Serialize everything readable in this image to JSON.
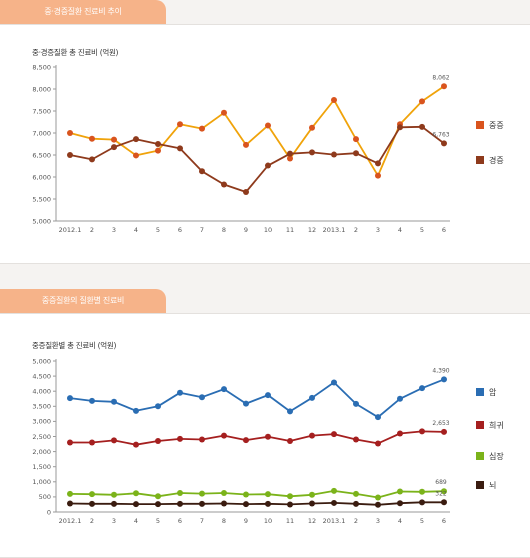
{
  "panels": [
    {
      "tab_label": "중·경증질환 진료비 추이",
      "chart_data": {
        "type": "line",
        "title": "중·경증질환 총 진료비 (억원)",
        "categories": [
          "2012.1",
          "2",
          "3",
          "4",
          "5",
          "6",
          "7",
          "8",
          "9",
          "10",
          "11",
          "12",
          "2013.1",
          "2",
          "3",
          "4",
          "5",
          "6"
        ],
        "ylim": [
          5000,
          8500
        ],
        "yticks": [
          5000,
          5500,
          6000,
          6500,
          7000,
          7500,
          8000,
          8500
        ],
        "ytick_labels": [
          "5,000",
          "5,500",
          "6,000",
          "6,500",
          "7,000",
          "7,500",
          "8,000",
          "8,500"
        ],
        "grid": false,
        "legend_position": "right",
        "series": [
          {
            "name": "중증",
            "color": "#f0a30a",
            "marker_color": "#d9541e",
            "values": [
              7000,
              6870,
              6850,
              6490,
              6600,
              7200,
              7100,
              7460,
              6730,
              7170,
              6420,
              7120,
              7750,
              6860,
              6030,
              7200,
              7720,
              8062
            ],
            "end_label": "8,062"
          },
          {
            "name": "경증",
            "color": "#8e3a1c",
            "marker_color": "#8e3a1c",
            "values": [
              6500,
              6400,
              6680,
              6860,
              6750,
              6650,
              6130,
              5830,
              5660,
              6260,
              6530,
              6560,
              6510,
              6540,
              6310,
              7130,
              7140,
              6763
            ],
            "end_label": "6,763"
          }
        ]
      }
    },
    {
      "tab_label": "중증질환의 질환별 진료비",
      "chart_data": {
        "type": "line",
        "title": "중증질환별 총 진료비 (억원)",
        "categories": [
          "2012.1",
          "2",
          "3",
          "4",
          "5",
          "6",
          "7",
          "8",
          "9",
          "10",
          "11",
          "12",
          "2013.1",
          "2",
          "3",
          "4",
          "5",
          "6"
        ],
        "ylim": [
          0,
          5000
        ],
        "yticks": [
          0,
          500,
          1000,
          1500,
          2000,
          2500,
          3000,
          3500,
          4000,
          4500,
          5000
        ],
        "ytick_labels": [
          "0",
          "500",
          "1,000",
          "1,500",
          "2,000",
          "2,500",
          "3,000",
          "3,500",
          "4,000",
          "4,500",
          "5,000"
        ],
        "grid": false,
        "legend_position": "right",
        "series": [
          {
            "name": "암",
            "color": "#2a6db3",
            "marker_color": "#2a6db3",
            "values": [
              3770,
              3680,
              3650,
              3350,
              3500,
              3950,
              3800,
              4070,
              3590,
              3870,
              3330,
              3780,
              4290,
              3580,
              3140,
              3750,
              4100,
              4390
            ],
            "end_label": "4,390"
          },
          {
            "name": "희귀",
            "color": "#a51f1f",
            "marker_color": "#a51f1f",
            "values": [
              2300,
              2300,
              2370,
              2230,
              2350,
              2420,
              2400,
              2530,
              2380,
              2490,
              2350,
              2530,
              2580,
              2400,
              2270,
              2600,
              2670,
              2653
            ],
            "end_label": "2,653"
          },
          {
            "name": "심장",
            "color": "#7bb31a",
            "marker_color": "#7bb31a",
            "values": [
              600,
              590,
              570,
              620,
              520,
              630,
              610,
              630,
              580,
              590,
              520,
              570,
              700,
              600,
              480,
              680,
              670,
              689
            ],
            "end_label": "689"
          },
          {
            "name": "뇌",
            "color": "#3a1c10",
            "marker_color": "#3a1c10",
            "values": [
              280,
              270,
              270,
              260,
              260,
              270,
              270,
              280,
              260,
              270,
              250,
              280,
              300,
              270,
              240,
              290,
              320,
              322
            ],
            "end_label": "322"
          }
        ]
      }
    }
  ]
}
